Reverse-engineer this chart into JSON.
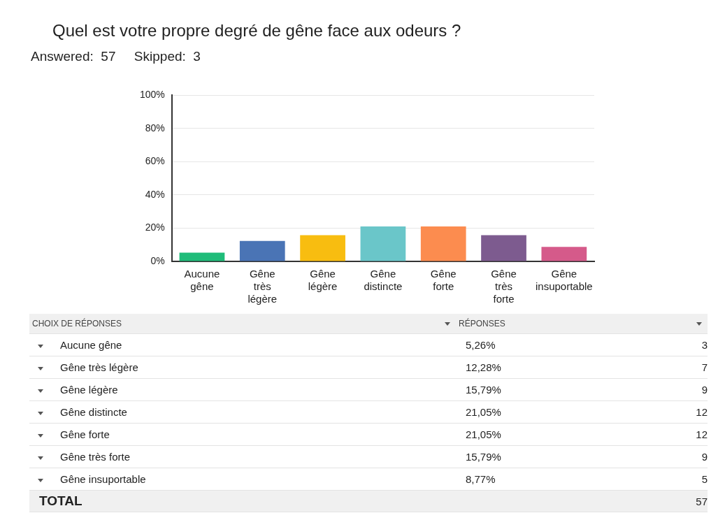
{
  "chart_data": {
    "type": "bar",
    "title": "Quel est votre propre degré de gêne face aux odeurs ?",
    "subtitle": "Answered:  57     Skipped:  3",
    "categories": [
      "Aucune gêne",
      "Gêne très légère",
      "Gêne légère",
      "Gêne distincte",
      "Gêne forte",
      "Gêne très forte",
      "Gêne insuportable"
    ],
    "values": [
      5.26,
      12.28,
      15.79,
      21.05,
      21.05,
      15.79,
      8.77
    ],
    "colors": [
      "#1fbc79",
      "#4a74b5",
      "#f8bd10",
      "#6ac6c9",
      "#fc8c4f",
      "#7d5b8f",
      "#d55a8a"
    ],
    "ylim": [
      0,
      100
    ],
    "yticks": [
      {
        "value": 0,
        "label": "0%"
      },
      {
        "value": 20,
        "label": "20%"
      },
      {
        "value": 40,
        "label": "40%"
      },
      {
        "value": 60,
        "label": "60%"
      },
      {
        "value": 80,
        "label": "80%"
      },
      {
        "value": 100,
        "label": "100%"
      }
    ],
    "grid": "y",
    "annotations": [
      "CHOIX DE RÉPONSES",
      "RÉPONSES",
      "5,26%",
      "3",
      "12,28%",
      "7",
      "15,79%",
      "9",
      "21,05%",
      "12",
      "21,05%",
      "12",
      "15,79%",
      "9",
      "8,77%",
      "5",
      "TOTAL",
      "57"
    ]
  }
}
